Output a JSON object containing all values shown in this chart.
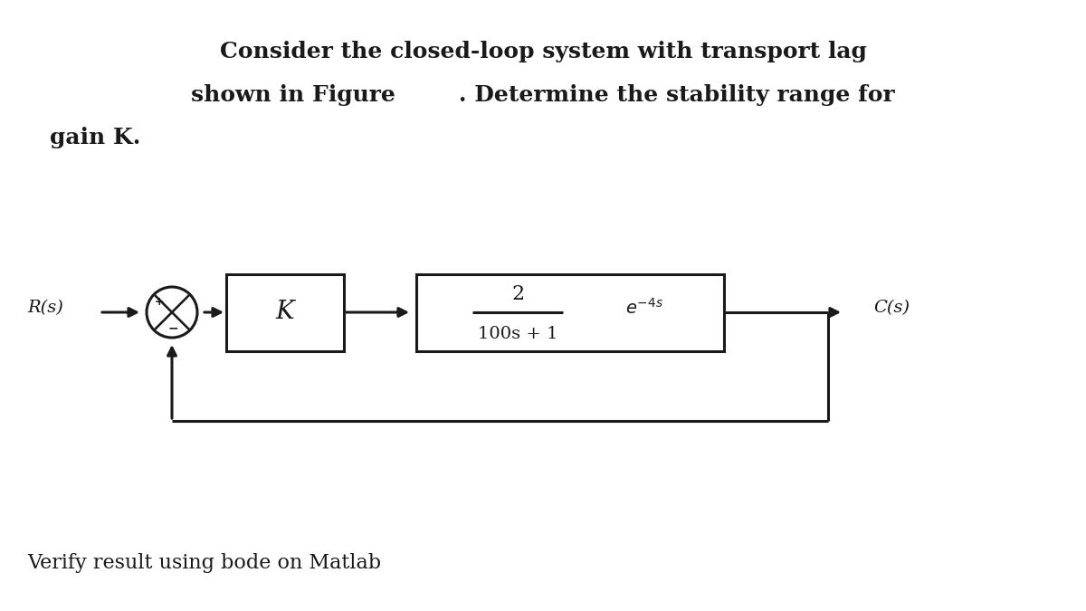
{
  "title_line1": "Consider the closed-loop system with transport lag",
  "title_line2": "shown in Figure        . Determine the stability range for",
  "title_line3": "gain K.",
  "footer": "Verify result using bode on Matlab",
  "background_color": "#ffffff",
  "text_color": "#1a1a1a",
  "diagram": {
    "R_label": "R(s)",
    "C_label": "C(s)",
    "K_label": "K",
    "tf_numerator": "2",
    "tf_denominator": "100s + 1",
    "arrow_color": "#1a1a1a",
    "line_width": 2.2
  },
  "title_fontsize": 18,
  "footer_fontsize": 16,
  "label_fontsize": 14,
  "K_fontsize": 20,
  "tf_num_fontsize": 16,
  "tf_den_fontsize": 14,
  "lag_fontsize": 14
}
